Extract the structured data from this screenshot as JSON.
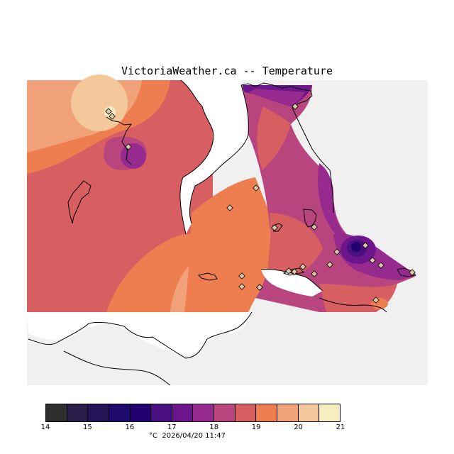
{
  "title": "VictoriaWeather.ca -- Temperature",
  "legend": {
    "unit": "°C",
    "timestamp": "2026/04/20 11:47",
    "tick_labels": [
      "14",
      "15",
      "16",
      "17",
      "18",
      "19",
      "20",
      "21"
    ],
    "colors": [
      "#2e2e2e",
      "#2b1d4a",
      "#231458",
      "#1d0a6a",
      "#250071",
      "#4a0f80",
      "#6d168c",
      "#962a8e",
      "#b9457f",
      "#d75e61",
      "#ee7e4f",
      "#f2a278",
      "#f5c89c",
      "#f6edc1"
    ],
    "range": [
      14,
      21
    ]
  },
  "map": {
    "background_color": "#f0f0f0",
    "water_color": "#ffffff",
    "stations_count_visible": 22
  }
}
